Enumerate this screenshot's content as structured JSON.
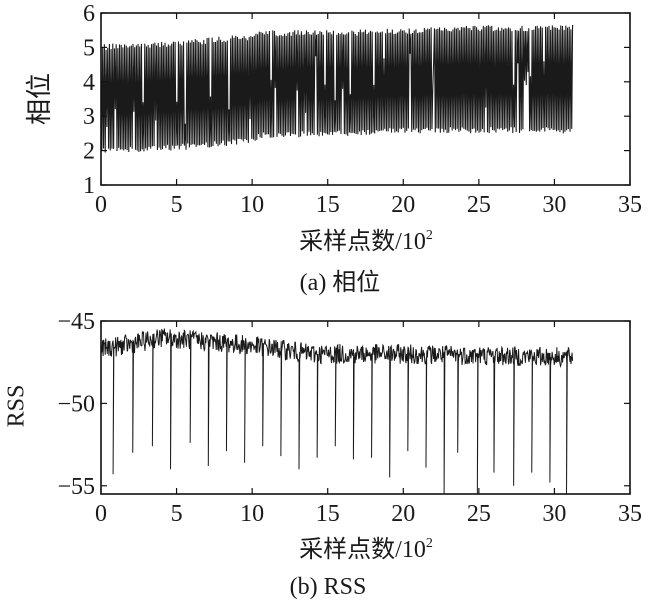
{
  "colors": {
    "ink": "#1a1a1a",
    "axis": "#111111",
    "background": "#ffffff"
  },
  "chart_data": [
    {
      "type": "line",
      "subtitle": "(a) 相位",
      "xlabel": "采样点数/10",
      "xlabel_exp": "2",
      "ylabel": "相位",
      "xlim": [
        0,
        35
      ],
      "ylim": [
        1,
        6
      ],
      "xticks": [
        0,
        5,
        10,
        15,
        20,
        25,
        30,
        35
      ],
      "yticks": [
        1,
        2,
        3,
        4,
        5,
        6
      ],
      "xtick_labels": [
        "0",
        "5",
        "10",
        "15",
        "20",
        "25",
        "30",
        "35"
      ],
      "ytick_labels": [
        "1",
        "2",
        "3",
        "4",
        "5",
        "6"
      ],
      "grid": false,
      "legend": "none",
      "series": [
        {
          "x_range": [
            0,
            31.2
          ],
          "pattern": "phase-wrap oscillation between low and high bands",
          "upper_envelope": {
            "x": [
              0,
              5,
              10,
              10.5,
              15,
              20,
              25,
              31.2
            ],
            "y": [
              5.1,
              5.2,
              5.4,
              5.5,
              5.5,
              5.55,
              5.65,
              5.65
            ]
          },
          "lower_envelope": {
            "x": [
              0,
              5,
              10,
              10.5,
              15,
              20,
              25,
              31.2
            ],
            "y": [
              1.9,
              2.0,
              2.2,
              2.35,
              2.4,
              2.5,
              2.5,
              2.5
            ]
          }
        }
      ]
    },
    {
      "type": "line",
      "subtitle": "(b) RSS",
      "xlabel": "采样点数/10",
      "xlabel_exp": "2",
      "ylabel": "RSS",
      "xlim": [
        0,
        35
      ],
      "ylim": [
        -55.5,
        -45
      ],
      "xticks": [
        0,
        5,
        10,
        15,
        20,
        25,
        30,
        35
      ],
      "yticks": [
        -55,
        -50,
        -45
      ],
      "xtick_labels": [
        "0",
        "5",
        "10",
        "15",
        "20",
        "25",
        "30",
        "35"
      ],
      "ytick_labels": [
        "−55",
        "−50",
        "−45"
      ],
      "grid": false,
      "legend": "none",
      "series": [
        {
          "x_range": [
            0,
            31.2
          ],
          "baseline": {
            "x": [
              0,
              2,
              4,
              8,
              11,
              14,
              20,
              31.2
            ],
            "y": [
              -46.7,
              -46.4,
              -46.0,
              -46.3,
              -46.6,
              -47.0,
              -47.0,
              -47.2
            ]
          },
          "noise_band": 1.2,
          "dips": {
            "x": [
              0.8,
              2.1,
              3.4,
              4.6,
              5.9,
              7.1,
              8.3,
              9.5,
              10.7,
              11.9,
              13.1,
              14.3,
              15.5,
              16.7,
              17.9,
              19.1,
              20.3,
              21.5,
              22.7,
              23.6,
              24.9,
              26.0,
              27.3,
              28.5,
              29.7,
              30.8
            ],
            "y": [
              -54.3,
              -53.0,
              -52.6,
              -54.0,
              -52.4,
              -53.8,
              -52.9,
              -53.6,
              -52.6,
              -53.2,
              -54.0,
              -53.3,
              -52.6,
              -53.4,
              -53.3,
              -54.5,
              -52.9,
              -53.9,
              -55.5,
              -53.0,
              -55.5,
              -54.2,
              -55.0,
              -54.2,
              -54.8,
              -55.5
            ]
          }
        }
      ]
    }
  ]
}
